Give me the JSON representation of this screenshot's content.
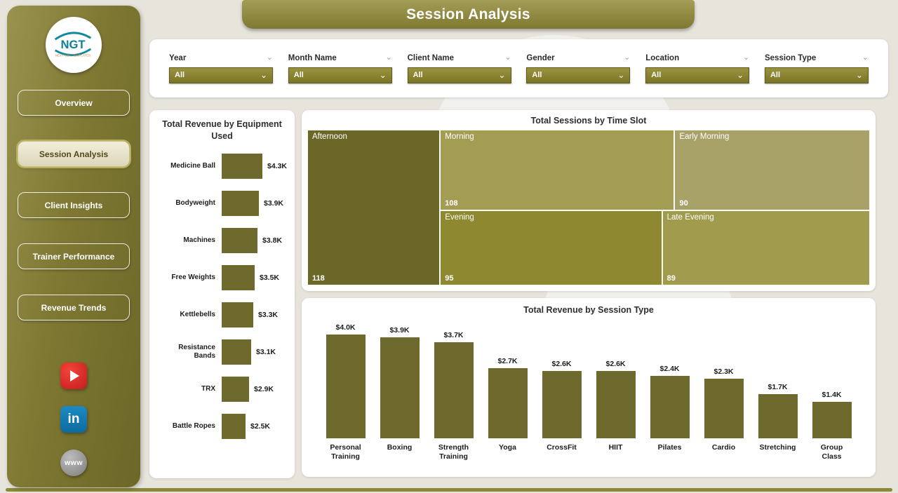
{
  "app": {
    "title": "Session Analysis"
  },
  "sidebar": {
    "logo": {
      "text": "NGT",
      "tagline": "NEXT GEN TEMPLATES"
    },
    "items": [
      {
        "label": "Overview",
        "active": false
      },
      {
        "label": "Session Analysis",
        "active": true
      },
      {
        "label": "Client Insights",
        "active": false
      },
      {
        "label": "Trainer Performance",
        "active": false
      },
      {
        "label": "Revenue Trends",
        "active": false
      }
    ],
    "social": [
      {
        "name": "youtube"
      },
      {
        "name": "linkedin",
        "glyph": "in"
      },
      {
        "name": "website",
        "glyph": "www"
      }
    ]
  },
  "filters": [
    {
      "label": "Year",
      "value": "All"
    },
    {
      "label": "Month Name",
      "value": "All"
    },
    {
      "label": "Client Name",
      "value": "All"
    },
    {
      "label": "Gender",
      "value": "All"
    },
    {
      "label": "Location",
      "value": "All"
    },
    {
      "label": "Session Type",
      "value": "All"
    }
  ],
  "chart_data": [
    {
      "type": "bar",
      "orientation": "horizontal",
      "title": "Total Revenue by Equipment Used",
      "categories": [
        "Medicine Ball",
        "Bodyweight",
        "Machines",
        "Free Weights",
        "Kettlebells",
        "Resistance Bands",
        "TRX",
        "Battle Ropes"
      ],
      "values": [
        4300,
        3900,
        3800,
        3500,
        3300,
        3100,
        2900,
        2500
      ],
      "labels": [
        "$4.3K",
        "$3.9K",
        "$3.8K",
        "$3.5K",
        "$3.3K",
        "$3.1K",
        "$2.9K",
        "$2.5K"
      ],
      "bar_color": "#6e692d",
      "xlabel": "",
      "ylabel": "",
      "grid": false,
      "legend": "none"
    },
    {
      "type": "treemap",
      "title": "Total Sessions by Time Slot",
      "tiles": [
        {
          "label": "Afternoon",
          "value": 118,
          "color": "#6b6727",
          "region": "left"
        },
        {
          "label": "Morning",
          "value": 108,
          "color": "#a39d54",
          "region": "top"
        },
        {
          "label": "Early Morning",
          "value": 90,
          "color": "#a8a268",
          "region": "top"
        },
        {
          "label": "Evening",
          "value": 95,
          "color": "#8e8830",
          "region": "bottom"
        },
        {
          "label": "Late Evening",
          "value": 89,
          "color": "#a19b4d",
          "region": "bottom"
        }
      ]
    },
    {
      "type": "bar",
      "orientation": "vertical",
      "title": "Total Revenue by Session Type",
      "categories": [
        "Personal Training",
        "Boxing",
        "Strength Training",
        "Yoga",
        "CrossFit",
        "HIIT",
        "Pilates",
        "Cardio",
        "Stretching",
        "Group Class"
      ],
      "values": [
        4000,
        3900,
        3700,
        2700,
        2600,
        2600,
        2400,
        2300,
        1700,
        1400
      ],
      "labels": [
        "$4.0K",
        "$3.9K",
        "$3.7K",
        "$2.7K",
        "$2.6K",
        "$2.6K",
        "$2.4K",
        "$2.3K",
        "$1.7K",
        "$1.4K"
      ],
      "bar_color": "#6e692d",
      "ylim": [
        0,
        4000
      ],
      "grid": false,
      "legend": "none"
    }
  ],
  "colors": {
    "accent": "#7f7930",
    "sidebar_dark": "#6d6727",
    "sidebar_light": "#99934f",
    "page_bg": "#e7e4dc",
    "logo_teal": "#0e7f96",
    "logo_orange": "#e07b39"
  }
}
